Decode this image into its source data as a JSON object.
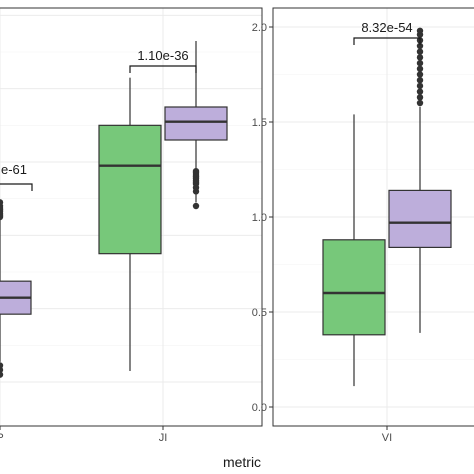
{
  "xlabel": "metric",
  "colors": {
    "green": "#77c87a",
    "purple": "#bdaedb",
    "stroke": "#333333",
    "grid": "#ebebeb"
  },
  "chart_data": [
    {
      "type": "box",
      "note": "left panel, cropped",
      "categories": [
        "P",
        "JI"
      ],
      "ylim": [
        -0.12,
        1.02
      ],
      "groups": [
        {
          "category": "P",
          "color": "purple",
          "box": {
            "whisker_low": 0.055,
            "q1": 0.185,
            "median": 0.23,
            "q3": 0.275,
            "whisker_high": 0.45
          },
          "outliers": [
            0.02,
            0.033,
            0.045,
            0.45,
            0.455,
            0.46,
            0.465,
            0.47,
            0.475,
            0.48,
            0.49
          ]
        },
        {
          "category": "JI",
          "color": "green",
          "box": {
            "whisker_low": 0.03,
            "q1": 0.35,
            "median": 0.59,
            "q3": 0.7,
            "whisker_high": 0.83
          },
          "outliers": []
        },
        {
          "category": "JI",
          "color": "purple",
          "box": {
            "whisker_low": 0.49,
            "q1": 0.66,
            "median": 0.71,
            "q3": 0.75,
            "whisker_high": 0.93
          },
          "outliers": [
            0.48,
            0.52,
            0.53,
            0.54,
            0.545,
            0.55,
            0.555,
            0.56,
            0.565,
            0.57,
            0.575
          ]
        }
      ],
      "annotations": [
        {
          "text": "e-61",
          "from": "P",
          "to": "P"
        },
        {
          "text": "1.10e-36",
          "from": "JI",
          "to": "JI"
        }
      ]
    },
    {
      "type": "box",
      "note": "right panel",
      "categories": [
        "VI"
      ],
      "ylim": [
        -0.1,
        2.1
      ],
      "yticks": [
        "0.0",
        "0.5",
        "1.0",
        "1.5",
        "2.0"
      ],
      "groups": [
        {
          "category": "VI",
          "color": "green",
          "box": {
            "whisker_low": 0.11,
            "q1": 0.38,
            "median": 0.6,
            "q3": 0.88,
            "whisker_high": 1.54
          },
          "outliers": []
        },
        {
          "category": "VI",
          "color": "purple",
          "box": {
            "whisker_low": 0.39,
            "q1": 0.84,
            "median": 0.97,
            "q3": 1.14,
            "whisker_high": 1.58
          },
          "outliers": [
            1.6,
            1.63,
            1.66,
            1.69,
            1.72,
            1.75,
            1.78,
            1.81,
            1.84,
            1.87,
            1.9,
            1.93,
            1.96,
            1.98
          ]
        }
      ],
      "annotations": [
        {
          "text": "8.32e-54",
          "from": "VI",
          "to": "VI"
        }
      ]
    }
  ]
}
